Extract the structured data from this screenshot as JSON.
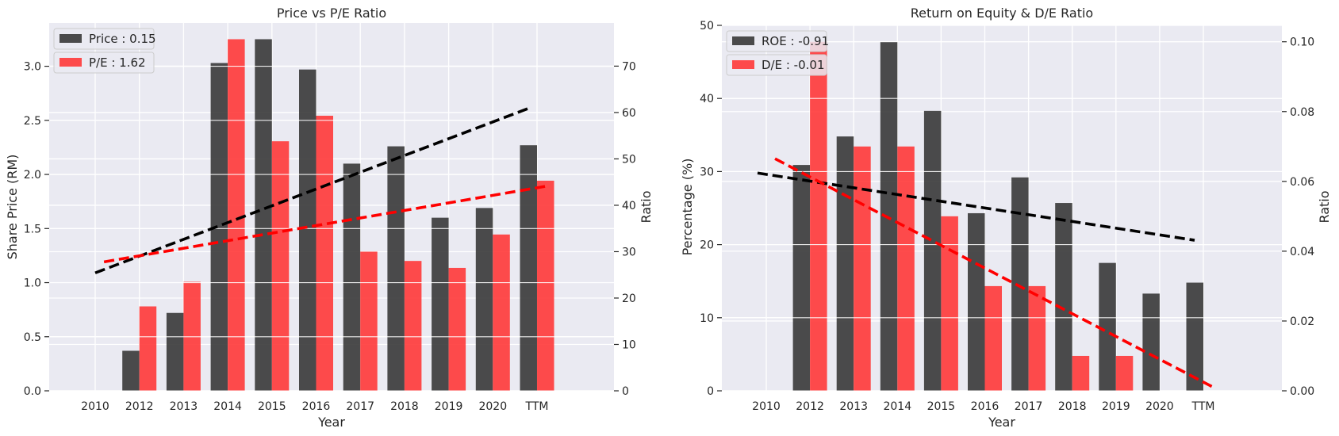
{
  "chart_data": [
    {
      "type": "bar",
      "title": "Price vs P/E Ratio",
      "xlabel": "Year",
      "ylabel": "Share Price (RM)",
      "y2label": "Ratio",
      "categories": [
        "2010",
        "2012",
        "2013",
        "2014",
        "2015",
        "2016",
        "2017",
        "2018",
        "2019",
        "2020",
        "TTM"
      ],
      "ylim": [
        0,
        3.4
      ],
      "y2lim": [
        0,
        79.3
      ],
      "yticks": [
        "0.0",
        "0.5",
        "1.0",
        "1.5",
        "2.0",
        "2.5",
        "3.0"
      ],
      "y2ticks": [
        "0",
        "10",
        "20",
        "30",
        "40",
        "50",
        "60",
        "70"
      ],
      "grid": true,
      "legend_position": "top-left",
      "series": [
        {
          "name": "Price : 0.15",
          "axis": "left",
          "color": "#333333",
          "values": [
            0,
            0.37,
            0.72,
            3.03,
            3.25,
            2.97,
            2.1,
            2.26,
            1.6,
            1.69,
            2.27
          ]
        },
        {
          "name": "P/E : 1.62",
          "axis": "right",
          "color": "#ff3333",
          "values": [
            0,
            18.2,
            23.5,
            75.8,
            53.8,
            59.3,
            30.0,
            28.0,
            26.5,
            33.7,
            45.3
          ]
        }
      ],
      "trendlines": [
        {
          "axis": "left",
          "color": "#000000",
          "from": [
            0,
            1.09
          ],
          "to": [
            9.8,
            2.61
          ]
        },
        {
          "axis": "right",
          "color": "#ff0000",
          "from": [
            0.2,
            27.8
          ],
          "to": [
            10.2,
            44.1
          ]
        }
      ]
    },
    {
      "type": "bar",
      "title": "Return on Equity & D/E Ratio",
      "xlabel": "Year",
      "ylabel": "Percentage (%)",
      "y2label": "Ratio",
      "categories": [
        "2010",
        "2012",
        "2013",
        "2014",
        "2015",
        "2016",
        "2017",
        "2018",
        "2019",
        "2020",
        "TTM"
      ],
      "ylim": [
        0,
        50
      ],
      "y2lim": [
        0,
        0.1047
      ],
      "yticks": [
        "0",
        "10",
        "20",
        "30",
        "40",
        "50"
      ],
      "y2ticks": [
        "0.00",
        "0.02",
        "0.04",
        "0.06",
        "0.08",
        "0.10"
      ],
      "grid": true,
      "legend_position": "top-left",
      "series": [
        {
          "name": "ROE : -0.91",
          "axis": "left",
          "color": "#333333",
          "values": [
            0,
            30.9,
            34.8,
            47.7,
            38.3,
            24.3,
            29.2,
            25.7,
            17.5,
            13.3,
            14.8
          ]
        },
        {
          "name": "D/E : -0.01",
          "axis": "right",
          "color": "#ff3333",
          "values": [
            0,
            0.1,
            0.07,
            0.07,
            0.05,
            0.03,
            0.03,
            0.01,
            0.01,
            0,
            0
          ]
        }
      ],
      "trendlines": [
        {
          "axis": "left",
          "color": "#000000",
          "from": [
            -0.2,
            29.8
          ],
          "to": [
            9.8,
            20.6
          ]
        },
        {
          "axis": "right",
          "color": "#ff0000",
          "from": [
            0.2,
            0.0665
          ],
          "to": [
            10.2,
            0.0012
          ]
        }
      ]
    }
  ]
}
